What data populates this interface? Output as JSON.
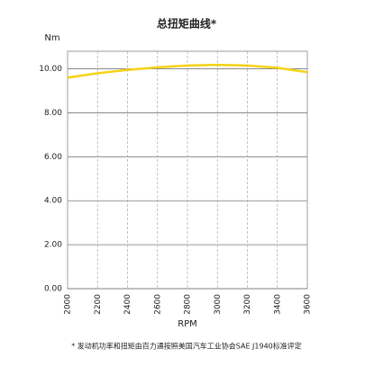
{
  "chart_data": {
    "type": "line",
    "title": "总扭矩曲线*",
    "ylabel": "Nm",
    "xlabel": "RPM",
    "footnote": "* 发动机功率和扭矩由百力通按照美国汽车工业协会SAE J1940标准评定",
    "x": [
      2000,
      2200,
      2400,
      2600,
      2800,
      3000,
      3200,
      3400,
      3600
    ],
    "series": [
      {
        "name": "总扭矩",
        "color": "#f5d214",
        "values": [
          9.6,
          9.8,
          9.95,
          10.07,
          10.15,
          10.18,
          10.15,
          10.05,
          9.85
        ]
      }
    ],
    "xlim": [
      2000,
      3600
    ],
    "xticks": [
      2000,
      2200,
      2400,
      2600,
      2800,
      3000,
      3200,
      3400,
      3600
    ],
    "ylim": [
      0,
      10.8
    ],
    "yticks": [
      {
        "value": 0,
        "label": "0.00"
      },
      {
        "value": 2,
        "label": "2.00"
      },
      {
        "value": 4,
        "label": "4.00"
      },
      {
        "value": 6,
        "label": "6.00"
      },
      {
        "value": 8,
        "label": "8.00"
      },
      {
        "value": 10,
        "label": "10.00"
      }
    ],
    "grid": true
  }
}
